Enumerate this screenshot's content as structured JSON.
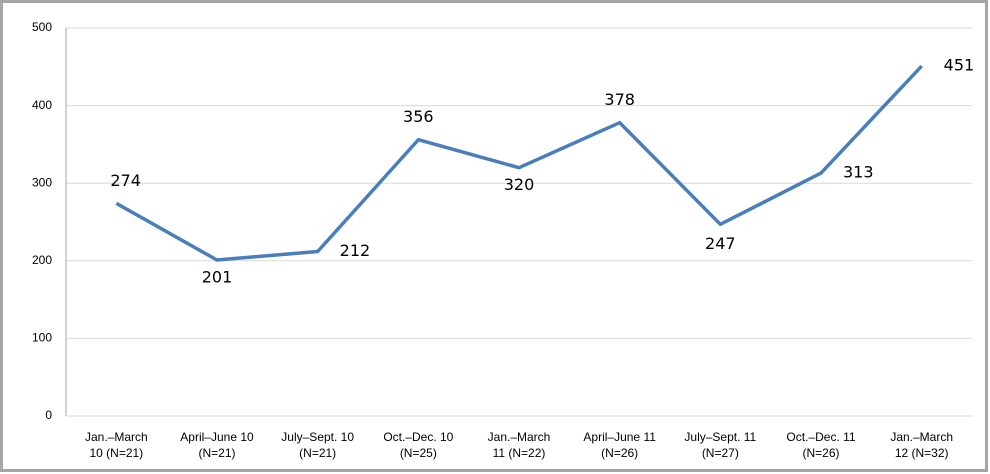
{
  "chart_data": {
    "type": "line",
    "categories": [
      [
        "Jan.–March",
        "10 (N=21)"
      ],
      [
        "April–June 10",
        "(N=21)"
      ],
      [
        "July–Sept. 10",
        "(N=21)"
      ],
      [
        "Oct.–Dec. 10",
        "(N=25)"
      ],
      [
        "Jan.–March",
        "11 (N=22)"
      ],
      [
        "April–June 11",
        "(N=26)"
      ],
      [
        "July–Sept. 11",
        "(N=27)"
      ],
      [
        "Oct.–Dec. 11",
        "(N=26)"
      ],
      [
        "Jan.–March",
        "12 (N=32)"
      ]
    ],
    "values": [
      274,
      201,
      212,
      356,
      320,
      378,
      247,
      313,
      451
    ],
    "color": "#4a7ebb",
    "ylim": [
      0,
      500
    ],
    "yticks": [
      0,
      100,
      200,
      300,
      400,
      500
    ],
    "grid": true
  }
}
